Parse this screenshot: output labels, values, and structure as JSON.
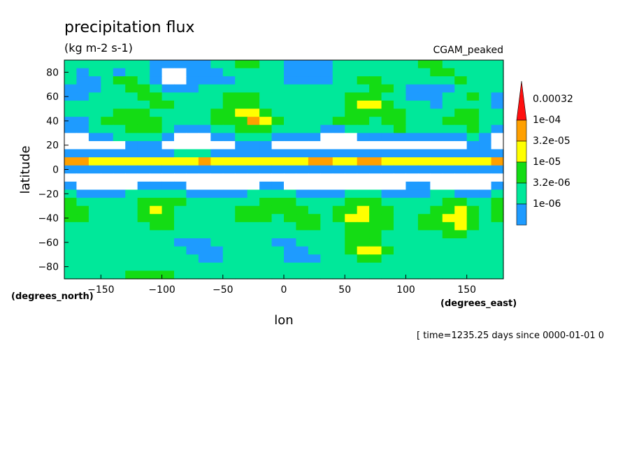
{
  "chart_data": {
    "type": "heatmap",
    "title": "precipitation flux",
    "units": "(kg m-2 s-1)",
    "dataset": "CGAM_peaked",
    "xlabel": "lon",
    "ylabel": "latitude",
    "x_units": "(degrees_east)",
    "y_units": "(degrees_north)",
    "xlim": [
      -180,
      180
    ],
    "ylim": [
      -90,
      90
    ],
    "x_ticks": [
      -150,
      -100,
      -50,
      0,
      50,
      100,
      150
    ],
    "y_ticks": [
      80,
      60,
      40,
      20,
      0,
      -20,
      -40,
      -60,
      -80
    ],
    "x_tick_labels": [
      "−150",
      "−100",
      "−50",
      "0",
      "50",
      "100",
      "150"
    ],
    "y_tick_labels": [
      "80",
      "60",
      "40",
      "20",
      "0",
      "−20",
      "−40",
      "−60",
      "−80"
    ],
    "time_note": "[ time=1235.25 days since 0000-01-01 0",
    "colorbar": {
      "labels": [
        "0.00032",
        "1e-04",
        "3.2e-05",
        "1e-05",
        "3.2e-06",
        "1e-06"
      ],
      "levels": [
        1e-06,
        3.2e-06,
        1e-05,
        3.2e-05,
        0.0001,
        0.00032
      ],
      "colors": [
        "#1e9bff",
        "#00e89a",
        "#14dc14",
        "#ffff00",
        "#ffa000",
        "#ff1010"
      ]
    },
    "grid": false,
    "values": [
      [
        2,
        2,
        2,
        2,
        2,
        2,
        2,
        1,
        1,
        1,
        1,
        1,
        2,
        2,
        3,
        3,
        2,
        2,
        1,
        1,
        1,
        1,
        2,
        2,
        2,
        2,
        2,
        2,
        2,
        3,
        3,
        2,
        2,
        2,
        2,
        2
      ],
      [
        2,
        1,
        2,
        2,
        1,
        2,
        2,
        1,
        0,
        0,
        1,
        1,
        1,
        2,
        2,
        2,
        2,
        2,
        1,
        1,
        1,
        1,
        2,
        2,
        2,
        2,
        2,
        2,
        2,
        2,
        3,
        3,
        2,
        2,
        2,
        2
      ],
      [
        2,
        1,
        1,
        2,
        3,
        3,
        2,
        1,
        0,
        0,
        1,
        1,
        1,
        1,
        2,
        2,
        2,
        2,
        1,
        1,
        1,
        1,
        2,
        2,
        3,
        3,
        2,
        2,
        2,
        2,
        2,
        2,
        3,
        2,
        2,
        2
      ],
      [
        1,
        1,
        1,
        2,
        2,
        3,
        3,
        2,
        1,
        1,
        1,
        2,
        2,
        2,
        2,
        2,
        2,
        2,
        2,
        2,
        2,
        2,
        2,
        2,
        2,
        3,
        3,
        2,
        1,
        1,
        1,
        1,
        2,
        2,
        2,
        2
      ],
      [
        1,
        1,
        2,
        2,
        2,
        2,
        3,
        3,
        2,
        2,
        2,
        2,
        2,
        3,
        3,
        3,
        2,
        2,
        2,
        2,
        2,
        2,
        2,
        3,
        3,
        3,
        2,
        2,
        1,
        1,
        1,
        2,
        2,
        3,
        2,
        1
      ],
      [
        2,
        2,
        2,
        2,
        2,
        2,
        2,
        3,
        3,
        2,
        2,
        2,
        2,
        3,
        3,
        3,
        2,
        2,
        2,
        2,
        2,
        2,
        2,
        3,
        4,
        4,
        3,
        2,
        2,
        2,
        1,
        2,
        2,
        2,
        2,
        1
      ],
      [
        2,
        2,
        2,
        2,
        3,
        3,
        3,
        2,
        2,
        2,
        2,
        2,
        3,
        3,
        4,
        4,
        3,
        2,
        2,
        2,
        2,
        2,
        2,
        3,
        3,
        3,
        3,
        3,
        2,
        2,
        2,
        2,
        3,
        3,
        2,
        2
      ],
      [
        1,
        1,
        2,
        3,
        3,
        3,
        3,
        3,
        2,
        2,
        2,
        2,
        3,
        3,
        3,
        5,
        4,
        3,
        2,
        2,
        2,
        2,
        3,
        3,
        3,
        2,
        3,
        3,
        2,
        2,
        2,
        3,
        3,
        3,
        2,
        2
      ],
      [
        1,
        1,
        2,
        2,
        2,
        3,
        3,
        3,
        2,
        1,
        1,
        1,
        2,
        2,
        3,
        3,
        3,
        2,
        2,
        2,
        2,
        1,
        1,
        2,
        2,
        2,
        2,
        3,
        2,
        2,
        2,
        2,
        2,
        3,
        2,
        1
      ],
      [
        0,
        0,
        1,
        1,
        2,
        2,
        2,
        2,
        1,
        0,
        0,
        0,
        1,
        1,
        2,
        2,
        2,
        1,
        1,
        1,
        1,
        0,
        0,
        0,
        1,
        1,
        1,
        1,
        1,
        1,
        1,
        1,
        1,
        2,
        1,
        0
      ],
      [
        0,
        0,
        0,
        0,
        0,
        1,
        1,
        1,
        0,
        0,
        0,
        0,
        0,
        0,
        1,
        1,
        1,
        0,
        0,
        0,
        0,
        0,
        0,
        0,
        0,
        0,
        0,
        0,
        0,
        0,
        0,
        0,
        0,
        1,
        1,
        0
      ],
      [
        1,
        1,
        1,
        1,
        1,
        1,
        1,
        1,
        1,
        2,
        2,
        2,
        1,
        1,
        1,
        1,
        1,
        1,
        1,
        1,
        1,
        1,
        1,
        1,
        1,
        1,
        1,
        1,
        1,
        1,
        1,
        1,
        1,
        1,
        1,
        1
      ],
      [
        5,
        5,
        4,
        4,
        4,
        4,
        4,
        4,
        4,
        4,
        4,
        5,
        4,
        4,
        4,
        4,
        4,
        4,
        4,
        4,
        5,
        5,
        4,
        4,
        5,
        5,
        4,
        4,
        4,
        4,
        4,
        4,
        4,
        4,
        4,
        5
      ],
      [
        1,
        1,
        1,
        1,
        1,
        1,
        1,
        1,
        1,
        1,
        1,
        1,
        1,
        1,
        1,
        1,
        1,
        1,
        1,
        1,
        1,
        1,
        1,
        1,
        1,
        1,
        1,
        1,
        1,
        1,
        1,
        1,
        1,
        1,
        1,
        1
      ],
      [
        0,
        0,
        0,
        0,
        0,
        0,
        0,
        0,
        0,
        0,
        0,
        0,
        0,
        0,
        0,
        0,
        0,
        0,
        0,
        0,
        0,
        0,
        0,
        0,
        0,
        0,
        0,
        0,
        0,
        0,
        0,
        0,
        0,
        0,
        0,
        0
      ],
      [
        1,
        0,
        0,
        0,
        0,
        0,
        1,
        1,
        1,
        1,
        0,
        0,
        0,
        0,
        0,
        0,
        1,
        1,
        0,
        0,
        0,
        0,
        0,
        0,
        0,
        0,
        0,
        0,
        1,
        1,
        0,
        0,
        0,
        0,
        0,
        1
      ],
      [
        2,
        1,
        1,
        1,
        1,
        2,
        2,
        2,
        2,
        2,
        1,
        1,
        1,
        1,
        1,
        2,
        2,
        2,
        2,
        1,
        1,
        1,
        1,
        2,
        2,
        2,
        1,
        1,
        1,
        1,
        2,
        2,
        1,
        1,
        1,
        2
      ],
      [
        3,
        2,
        2,
        2,
        2,
        2,
        3,
        3,
        3,
        3,
        2,
        2,
        2,
        2,
        2,
        2,
        3,
        3,
        3,
        2,
        2,
        2,
        2,
        3,
        3,
        3,
        2,
        2,
        2,
        2,
        2,
        3,
        3,
        2,
        2,
        3
      ],
      [
        3,
        3,
        2,
        2,
        2,
        2,
        3,
        4,
        3,
        2,
        2,
        2,
        2,
        2,
        3,
        3,
        3,
        3,
        3,
        3,
        2,
        2,
        3,
        3,
        4,
        3,
        3,
        2,
        2,
        2,
        3,
        3,
        4,
        3,
        2,
        3
      ],
      [
        3,
        3,
        2,
        2,
        2,
        2,
        3,
        3,
        3,
        2,
        2,
        2,
        2,
        2,
        3,
        3,
        3,
        2,
        3,
        3,
        3,
        2,
        3,
        4,
        4,
        3,
        3,
        2,
        2,
        3,
        3,
        4,
        4,
        3,
        2,
        3
      ],
      [
        2,
        2,
        2,
        2,
        2,
        2,
        2,
        3,
        3,
        2,
        2,
        2,
        2,
        2,
        2,
        2,
        2,
        2,
        2,
        3,
        3,
        2,
        2,
        3,
        3,
        3,
        3,
        2,
        2,
        3,
        3,
        3,
        4,
        3,
        2,
        2
      ],
      [
        2,
        2,
        2,
        2,
        2,
        2,
        2,
        2,
        2,
        2,
        2,
        2,
        2,
        2,
        2,
        2,
        2,
        2,
        2,
        2,
        2,
        2,
        2,
        3,
        3,
        3,
        2,
        2,
        2,
        2,
        2,
        3,
        3,
        2,
        2,
        2
      ],
      [
        2,
        2,
        2,
        2,
        2,
        2,
        2,
        2,
        2,
        1,
        1,
        1,
        2,
        2,
        2,
        2,
        2,
        1,
        1,
        2,
        2,
        2,
        2,
        3,
        3,
        3,
        2,
        2,
        2,
        2,
        2,
        2,
        2,
        2,
        2,
        2
      ],
      [
        2,
        2,
        2,
        2,
        2,
        2,
        2,
        2,
        2,
        2,
        1,
        1,
        1,
        2,
        2,
        2,
        2,
        2,
        1,
        1,
        2,
        2,
        2,
        3,
        4,
        4,
        3,
        2,
        2,
        2,
        2,
        2,
        2,
        2,
        2,
        2
      ],
      [
        2,
        2,
        2,
        2,
        2,
        2,
        2,
        2,
        2,
        2,
        2,
        1,
        1,
        2,
        2,
        2,
        2,
        2,
        1,
        1,
        1,
        2,
        2,
        2,
        3,
        3,
        2,
        2,
        2,
        2,
        2,
        2,
        2,
        2,
        2,
        2
      ],
      [
        2,
        2,
        2,
        2,
        2,
        2,
        2,
        2,
        2,
        2,
        2,
        2,
        2,
        2,
        2,
        2,
        2,
        2,
        2,
        2,
        2,
        2,
        2,
        2,
        2,
        2,
        2,
        2,
        2,
        2,
        2,
        2,
        2,
        2,
        2,
        2
      ],
      [
        2,
        2,
        2,
        2,
        2,
        3,
        3,
        3,
        3,
        2,
        2,
        2,
        2,
        2,
        2,
        2,
        2,
        2,
        2,
        2,
        2,
        2,
        2,
        2,
        2,
        2,
        2,
        2,
        2,
        2,
        2,
        2,
        2,
        2,
        2,
        2
      ]
    ]
  }
}
